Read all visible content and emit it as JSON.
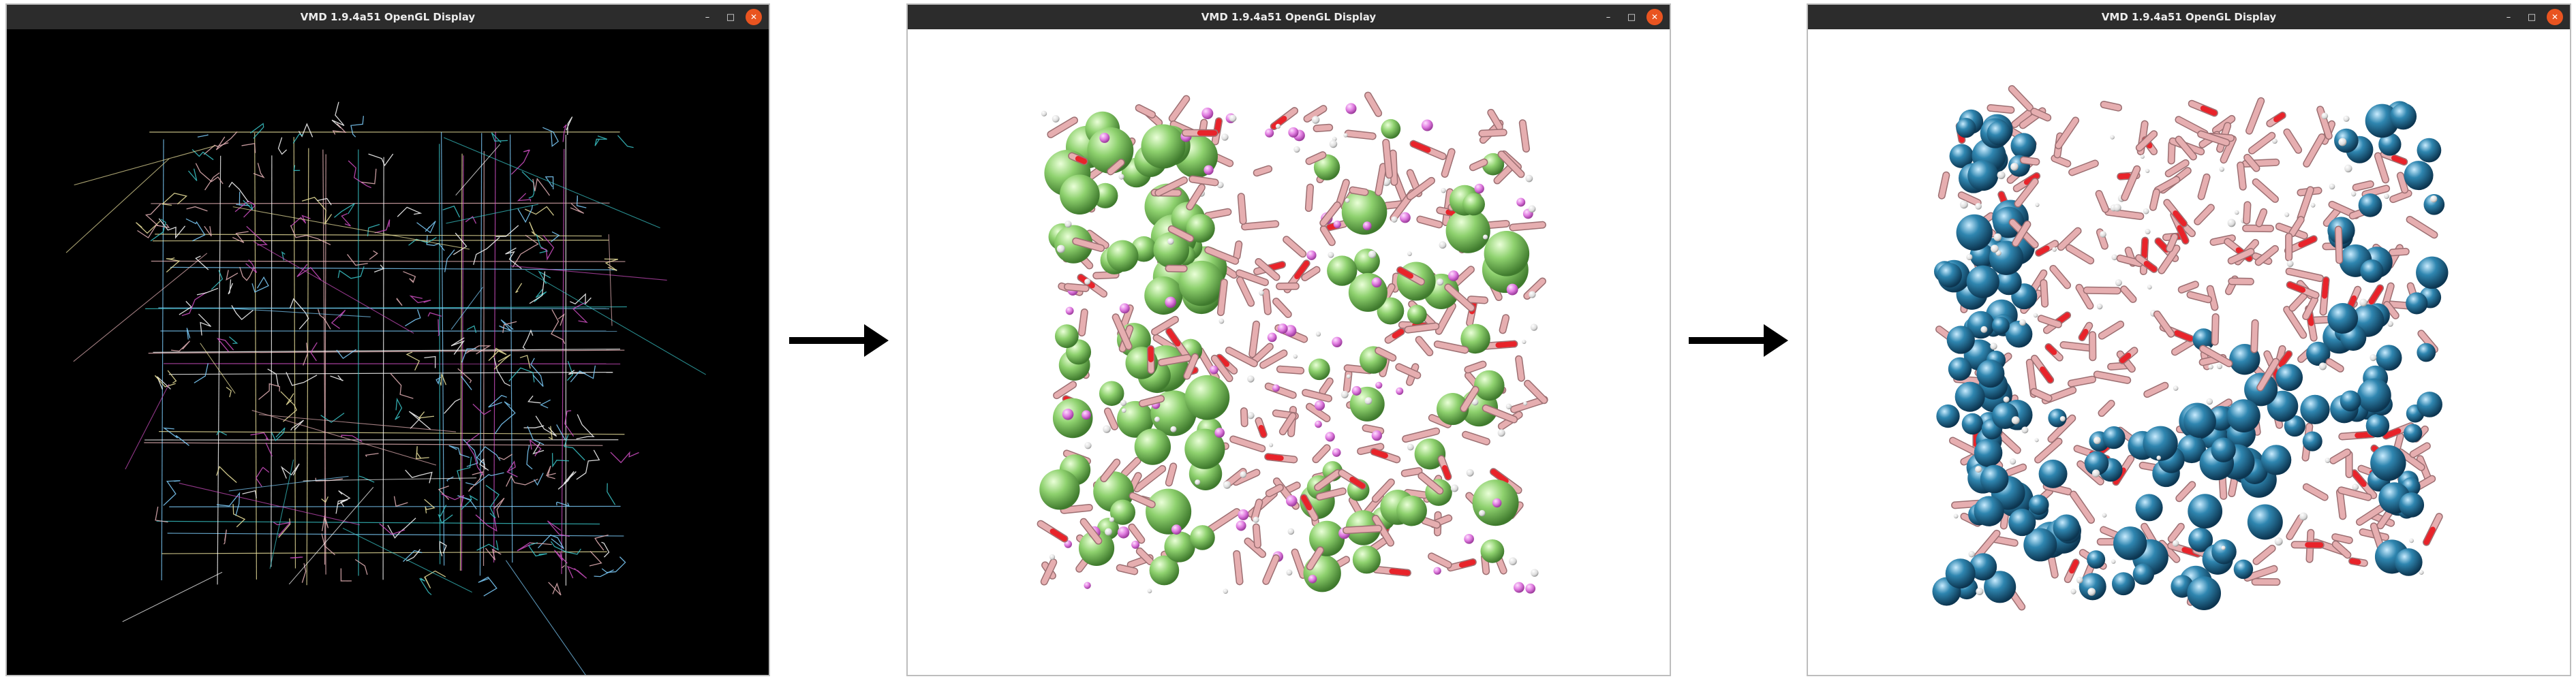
{
  "windows": [
    {
      "title": "VMD 1.9.4a51 OpenGL Display",
      "controls": {
        "minimize": "–",
        "maximize": "□",
        "close": "✕"
      },
      "representation": "lines",
      "background": "#000000"
    },
    {
      "title": "VMD 1.9.4a51 OpenGL Display",
      "controls": {
        "minimize": "–",
        "maximize": "□",
        "close": "✕"
      },
      "representation": "licorice + green vdw spheres",
      "background": "#ffffff"
    },
    {
      "title": "VMD 1.9.4a51 OpenGL Display",
      "controls": {
        "minimize": "–",
        "maximize": "□",
        "close": "✕"
      },
      "representation": "licorice + blue vdw spheres",
      "background": "#ffffff"
    }
  ],
  "colors": {
    "titlebar": "#2c2c2c",
    "close_button": "#e95420",
    "bond_pink": "#e6aeb0",
    "oxygen_red": "#e8232a",
    "sphere_green": "#8ed16e",
    "sphere_blue": "#2f86b0",
    "line_cyan": "#39c6c9",
    "line_magenta": "#d04fc4"
  },
  "icons": {
    "arrow": "right-arrow-icon",
    "minimize": "minimize-icon",
    "maximize": "maximize-icon",
    "close": "close-icon"
  }
}
